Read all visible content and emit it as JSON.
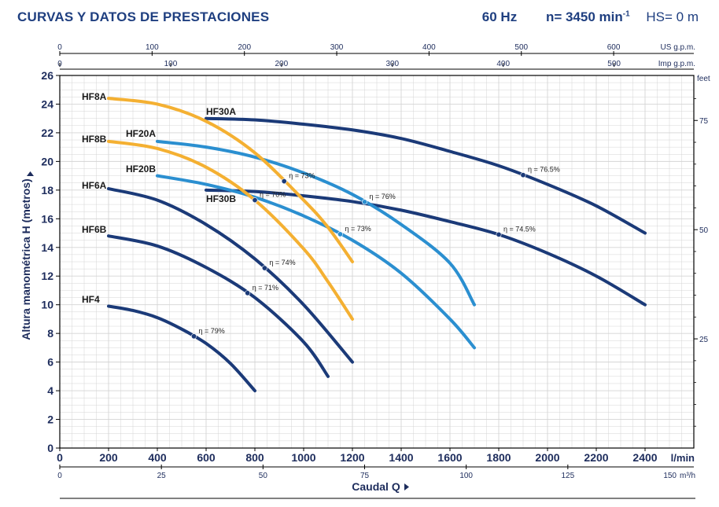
{
  "header": {
    "title": "CURVAS Y DATOS DE PRESTACIONES",
    "freq": "60 Hz",
    "speed_prefix": "n= 3450 min",
    "speed_sup": "-1",
    "hs": "HS= 0 m"
  },
  "colors": {
    "dark": "#1b3a78",
    "mid": "#2b8fd0",
    "orange": "#f4b032",
    "grid": "#d4d4d4",
    "frame": "#000000",
    "text": "#1d2c5c"
  },
  "chart_data": {
    "type": "line",
    "xlabel": "Caudal  Q",
    "ylabel": "Altura manométrica H (metros)",
    "xlim": [
      0,
      2600
    ],
    "ylim": [
      0,
      26
    ],
    "axes": {
      "lmin_ticks": [
        "0",
        "200",
        "400",
        "600",
        "800",
        "1000",
        "1200",
        "1400",
        "1600",
        "1800",
        "2000",
        "2200",
        "2400"
      ],
      "lmin_unit": "l/min",
      "m3h_ticks": [
        "0",
        "25",
        "50",
        "75",
        "100",
        "125"
      ],
      "m3h_end": "150",
      "m3h_unit": "m³/h",
      "usgpm_ticks": [
        "0",
        "100",
        "200",
        "300",
        "400",
        "500",
        "600"
      ],
      "usgpm_unit": "US g.p.m.",
      "impgpm_ticks": [
        "0",
        "100",
        "200",
        "300",
        "400",
        "500"
      ],
      "impgpm_unit": "Imp g.p.m.",
      "h_ticks": [
        "0",
        "2",
        "4",
        "6",
        "8",
        "10",
        "12",
        "14",
        "16",
        "18",
        "20",
        "22",
        "24",
        "26"
      ],
      "feet_ticks": [
        "25",
        "50",
        "75"
      ],
      "feet_unit": "feet"
    },
    "series": [
      {
        "name": "HF30A",
        "color": "dark",
        "x": [
          600,
          800,
          1000,
          1200,
          1400,
          1600,
          1800,
          2000,
          2200,
          2400
        ],
        "y": [
          23,
          22.9,
          22.6,
          22.2,
          21.6,
          20.7,
          19.7,
          18.4,
          16.9,
          15
        ]
      },
      {
        "name": "HF30B",
        "color": "dark",
        "x": [
          600,
          800,
          1000,
          1200,
          1400,
          1600,
          1800,
          2000,
          2200,
          2400
        ],
        "y": [
          18,
          17.9,
          17.6,
          17.2,
          16.6,
          15.8,
          14.9,
          13.6,
          12.0,
          10
        ]
      },
      {
        "name": "HF20A",
        "color": "mid",
        "x": [
          400,
          600,
          800,
          1000,
          1200,
          1400,
          1600,
          1700
        ],
        "y": [
          21.4,
          21.0,
          20.3,
          19.2,
          17.7,
          15.6,
          12.9,
          10
        ]
      },
      {
        "name": "HF20B",
        "color": "mid",
        "x": [
          400,
          600,
          800,
          1000,
          1200,
          1400,
          1600,
          1700
        ],
        "y": [
          19,
          18.4,
          17.5,
          16.2,
          14.5,
          12.2,
          9.0,
          7
        ]
      },
      {
        "name": "HF8A",
        "color": "orange",
        "x": [
          200,
          400,
          600,
          800,
          1000,
          1100,
          1200
        ],
        "y": [
          24.4,
          24.0,
          22.8,
          20.6,
          17.3,
          15.4,
          13.0
        ]
      },
      {
        "name": "HF8B",
        "color": "orange",
        "x": [
          200,
          400,
          600,
          800,
          1000,
          1100,
          1200
        ],
        "y": [
          21.4,
          20.9,
          19.6,
          17.3,
          13.9,
          11.6,
          9.0
        ]
      },
      {
        "name": "HF6A",
        "color": "dark",
        "x": [
          200,
          400,
          600,
          800,
          1000,
          1200
        ],
        "y": [
          18.1,
          17.3,
          15.6,
          13.2,
          10.0,
          6.0
        ]
      },
      {
        "name": "HF6B",
        "color": "dark",
        "x": [
          200,
          400,
          600,
          800,
          1000,
          1100
        ],
        "y": [
          14.8,
          14.1,
          12.6,
          10.5,
          7.4,
          5.0
        ]
      },
      {
        "name": "HF4",
        "color": "dark",
        "x": [
          200,
          300,
          400,
          500,
          600,
          700,
          800
        ],
        "y": [
          9.9,
          9.6,
          9.1,
          8.3,
          7.3,
          5.9,
          4.0
        ]
      }
    ],
    "annotations": [
      {
        "series": "HF30A",
        "x": 1900,
        "label": "η = 76.5%"
      },
      {
        "series": "HF30B",
        "x": 1800,
        "label": "η = 74.5%"
      },
      {
        "series": "HF20A",
        "x": 1250,
        "label": "η = 76%"
      },
      {
        "series": "HF20B",
        "x": 1150,
        "label": "η = 73%"
      },
      {
        "series": "HF8A",
        "x": 920,
        "label": "η = 73%"
      },
      {
        "series": "HF8B",
        "x": 800,
        "label": "η = 70%"
      },
      {
        "series": "HF6A",
        "x": 840,
        "label": "η = 74%"
      },
      {
        "series": "HF6B",
        "x": 770,
        "label": "η = 71%"
      },
      {
        "series": "HF4",
        "x": 550,
        "label": "η = 79%"
      }
    ]
  }
}
